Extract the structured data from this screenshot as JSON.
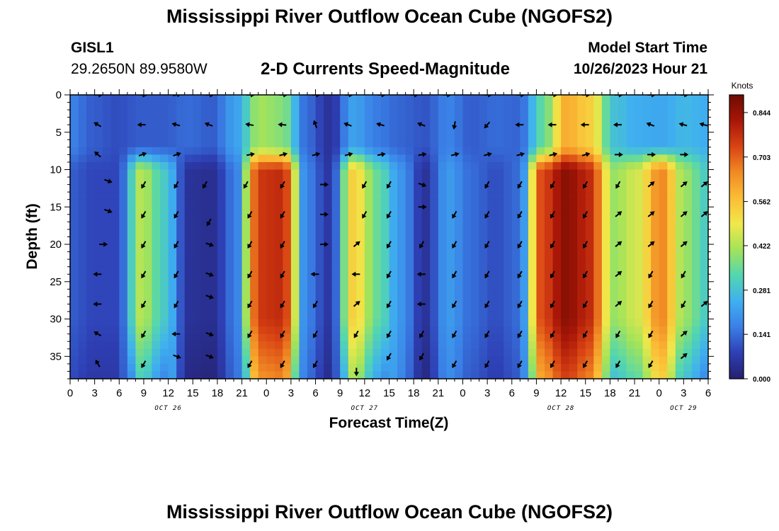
{
  "header": {
    "title": "Mississippi River Outflow Ocean Cube (NGOFS2)",
    "station": "GISL1",
    "coords": "29.2650N  89.9580W",
    "subtitle": "2-D Currents Speed-Magnitude",
    "model_start_label": "Model Start Time",
    "model_start_value": "10/26/2023 Hour 21"
  },
  "footer": {
    "title": "Mississippi River Outflow Ocean Cube (NGOFS2)"
  },
  "chart_data": {
    "type": "heatmap",
    "title": "2-D Currents Speed-Magnitude",
    "xlabel": "Forecast Time(Z)",
    "ylabel": "Depth (ft)",
    "x_ticks": [
      "0",
      "3",
      "6",
      "9",
      "12",
      "15",
      "18",
      "21",
      "0",
      "3",
      "6",
      "9",
      "12",
      "15",
      "18",
      "21",
      "0",
      "3",
      "6",
      "9",
      "12",
      "15",
      "18",
      "21",
      "0",
      "3",
      "6"
    ],
    "date_labels": [
      {
        "label": "OCT 26",
        "hour": 12
      },
      {
        "label": "OCT 27",
        "hour": 36
      },
      {
        "label": "OCT 28",
        "hour": 60
      },
      {
        "label": "OCT 29",
        "hour": 75
      }
    ],
    "xlim": [
      0,
      78
    ],
    "ylim": [
      0,
      38
    ],
    "y_ticks": [
      "0",
      "5",
      "10",
      "15",
      "20",
      "25",
      "30",
      "35"
    ],
    "colorbar": {
      "label": "Knots",
      "min": 0.0,
      "max": 0.9,
      "ticks": [
        "0.000",
        "0.141",
        "0.281",
        "0.422",
        "0.562",
        "0.703",
        "0.844"
      ]
    },
    "colormap": [
      "#24206e",
      "#2e3fb4",
      "#3a7fe6",
      "#3fb0f0",
      "#52d6b0",
      "#a3e35a",
      "#f0e84a",
      "#fbbd36",
      "#f18a24",
      "#d94414",
      "#a81608",
      "#6e0b02"
    ],
    "description": "Speed magnitude (knots) at each forecast hour (x) and depth in ft (y); sparse arrows show current direction.",
    "depth_bands": [
      {
        "from": 0,
        "to": 9,
        "speeds": [
          0.17,
          0.12,
          0.1,
          0.12,
          0.12,
          0.14,
          0.12,
          0.22,
          0.41,
          0.38,
          0.14,
          0.05,
          0.22,
          0.16,
          0.13,
          0.11,
          0.17,
          0.12,
          0.14,
          0.13,
          0.34,
          0.6,
          0.54,
          0.28,
          0.24,
          0.23,
          0.26,
          0.24
        ]
      },
      {
        "from": 9,
        "to": 38,
        "speeds": [
          0.12,
          0.09,
          0.09,
          0.43,
          0.3,
          0.05,
          0.04,
          0.16,
          0.76,
          0.78,
          0.17,
          0.06,
          0.54,
          0.35,
          0.2,
          0.05,
          0.21,
          0.14,
          0.1,
          0.14,
          0.74,
          0.86,
          0.78,
          0.4,
          0.46,
          0.66,
          0.4,
          0.3
        ]
      }
    ],
    "arrows": [
      {
        "t": 3.4,
        "d": 0,
        "dir": 0
      },
      {
        "t": 8.8,
        "d": 0,
        "dir": 5
      },
      {
        "t": 13,
        "d": 0,
        "dir": -10
      },
      {
        "t": 17,
        "d": 0,
        "dir": 0
      },
      {
        "t": 22,
        "d": 0,
        "dir": 0
      },
      {
        "t": 26,
        "d": 0,
        "dir": 0
      },
      {
        "t": 30,
        "d": 0,
        "dir": 0
      },
      {
        "t": 34,
        "d": 0,
        "dir": 0
      },
      {
        "t": 38,
        "d": 0,
        "dir": 0
      },
      {
        "t": 42,
        "d": 0,
        "dir": 0
      },
      {
        "t": 46,
        "d": 0,
        "dir": 0
      },
      {
        "t": 51,
        "d": 0,
        "dir": 0
      },
      {
        "t": 55,
        "d": 0,
        "dir": 0
      },
      {
        "t": 59,
        "d": 0,
        "dir": 0
      },
      {
        "t": 63,
        "d": 0,
        "dir": 0
      },
      {
        "t": 67,
        "d": 0,
        "dir": 0
      },
      {
        "t": 71,
        "d": 0,
        "dir": 0
      },
      {
        "t": 75,
        "d": 0,
        "dir": 0
      },
      {
        "t": 3.4,
        "d": 4,
        "dir": 210
      },
      {
        "t": 8.8,
        "d": 4,
        "dir": 180
      },
      {
        "t": 13,
        "d": 4,
        "dir": 195
      },
      {
        "t": 17,
        "d": 4,
        "dir": 200
      },
      {
        "t": 22,
        "d": 4,
        "dir": 190
      },
      {
        "t": 26,
        "d": 4,
        "dir": 185
      },
      {
        "t": 30,
        "d": 4,
        "dir": 250
      },
      {
        "t": 34,
        "d": 4,
        "dir": 200
      },
      {
        "t": 38,
        "d": 4,
        "dir": 195
      },
      {
        "t": 43,
        "d": 4,
        "dir": 200
      },
      {
        "t": 47,
        "d": 4,
        "dir": 100
      },
      {
        "t": 51,
        "d": 4,
        "dir": 130
      },
      {
        "t": 55,
        "d": 4,
        "dir": 180
      },
      {
        "t": 59,
        "d": 4,
        "dir": 180
      },
      {
        "t": 63,
        "d": 4,
        "dir": 180
      },
      {
        "t": 67,
        "d": 4,
        "dir": 180
      },
      {
        "t": 71,
        "d": 4,
        "dir": 200
      },
      {
        "t": 75,
        "d": 4,
        "dir": 195
      },
      {
        "t": 77.5,
        "d": 4,
        "dir": 195
      },
      {
        "t": 3.4,
        "d": 8,
        "dir": 220
      },
      {
        "t": 8.8,
        "d": 8,
        "dir": 340
      },
      {
        "t": 13,
        "d": 8,
        "dir": 340
      },
      {
        "t": 22,
        "d": 8,
        "dir": 350
      },
      {
        "t": 26,
        "d": 8,
        "dir": 345
      },
      {
        "t": 30,
        "d": 8,
        "dir": 345
      },
      {
        "t": 34,
        "d": 8,
        "dir": 345
      },
      {
        "t": 38,
        "d": 8,
        "dir": 350
      },
      {
        "t": 43,
        "d": 8,
        "dir": 350
      },
      {
        "t": 47,
        "d": 8,
        "dir": 345
      },
      {
        "t": 51,
        "d": 8,
        "dir": 345
      },
      {
        "t": 55,
        "d": 8,
        "dir": 345
      },
      {
        "t": 59,
        "d": 8,
        "dir": 345
      },
      {
        "t": 63,
        "d": 8,
        "dir": 345
      },
      {
        "t": 67,
        "d": 8,
        "dir": 0
      },
      {
        "t": 71,
        "d": 8,
        "dir": 0
      },
      {
        "t": 75,
        "d": 8,
        "dir": 0
      },
      {
        "t": 4.6,
        "d": 11.5,
        "dir": 20
      },
      {
        "t": 9,
        "d": 12,
        "dir": 120
      },
      {
        "t": 13,
        "d": 12,
        "dir": 120
      },
      {
        "t": 16.5,
        "d": 12,
        "dir": 120
      },
      {
        "t": 21.5,
        "d": 12,
        "dir": 120
      },
      {
        "t": 26,
        "d": 12,
        "dir": 120
      },
      {
        "t": 31,
        "d": 12,
        "dir": 0
      },
      {
        "t": 36,
        "d": 12,
        "dir": 120
      },
      {
        "t": 39,
        "d": 12,
        "dir": 120
      },
      {
        "t": 43,
        "d": 12,
        "dir": 20
      },
      {
        "t": 51,
        "d": 12,
        "dir": 120
      },
      {
        "t": 55,
        "d": 12,
        "dir": 120
      },
      {
        "t": 59,
        "d": 12,
        "dir": 120
      },
      {
        "t": 63,
        "d": 12,
        "dir": 120
      },
      {
        "t": 67,
        "d": 12,
        "dir": 120
      },
      {
        "t": 71,
        "d": 12,
        "dir": -40
      },
      {
        "t": 75,
        "d": 12,
        "dir": -40
      },
      {
        "t": 77.5,
        "d": 12,
        "dir": -40
      },
      {
        "t": 4.6,
        "d": 15.5,
        "dir": 20
      },
      {
        "t": 9,
        "d": 16,
        "dir": 120
      },
      {
        "t": 13,
        "d": 16,
        "dir": 120
      },
      {
        "t": 17,
        "d": 17,
        "dir": 120
      },
      {
        "t": 22,
        "d": 16,
        "dir": 120
      },
      {
        "t": 26,
        "d": 16,
        "dir": 120
      },
      {
        "t": 31,
        "d": 16,
        "dir": 0
      },
      {
        "t": 36,
        "d": 16,
        "dir": 120
      },
      {
        "t": 39,
        "d": 16,
        "dir": 120
      },
      {
        "t": 43,
        "d": 15,
        "dir": 0
      },
      {
        "t": 47,
        "d": 16,
        "dir": 120
      },
      {
        "t": 51,
        "d": 16,
        "dir": 120
      },
      {
        "t": 55,
        "d": 16,
        "dir": 120
      },
      {
        "t": 59,
        "d": 16,
        "dir": 120
      },
      {
        "t": 63,
        "d": 16,
        "dir": 120
      },
      {
        "t": 67,
        "d": 16,
        "dir": -40
      },
      {
        "t": 71,
        "d": 16,
        "dir": -40
      },
      {
        "t": 75,
        "d": 16,
        "dir": -40
      },
      {
        "t": 77.5,
        "d": 16,
        "dir": -40
      },
      {
        "t": 4,
        "d": 20,
        "dir": 0
      },
      {
        "t": 9,
        "d": 20,
        "dir": 120
      },
      {
        "t": 13,
        "d": 20,
        "dir": 120
      },
      {
        "t": 17,
        "d": 20,
        "dir": 20
      },
      {
        "t": 22,
        "d": 20,
        "dir": 120
      },
      {
        "t": 26,
        "d": 20,
        "dir": 120
      },
      {
        "t": 31,
        "d": 20,
        "dir": 0
      },
      {
        "t": 35,
        "d": 20,
        "dir": -40
      },
      {
        "t": 39,
        "d": 20,
        "dir": 120
      },
      {
        "t": 43,
        "d": 20,
        "dir": 120
      },
      {
        "t": 47,
        "d": 20,
        "dir": 120
      },
      {
        "t": 51,
        "d": 20,
        "dir": 120
      },
      {
        "t": 55,
        "d": 20,
        "dir": 120
      },
      {
        "t": 59,
        "d": 20,
        "dir": 120
      },
      {
        "t": 63,
        "d": 20,
        "dir": 120
      },
      {
        "t": 67,
        "d": 20,
        "dir": -40
      },
      {
        "t": 71,
        "d": 20,
        "dir": -40
      },
      {
        "t": 75,
        "d": 20,
        "dir": -40
      },
      {
        "t": 3.4,
        "d": 24,
        "dir": 180
      },
      {
        "t": 9,
        "d": 24,
        "dir": 120
      },
      {
        "t": 13,
        "d": 24,
        "dir": 120
      },
      {
        "t": 17,
        "d": 24,
        "dir": 20
      },
      {
        "t": 22,
        "d": 24,
        "dir": 120
      },
      {
        "t": 26,
        "d": 24,
        "dir": 120
      },
      {
        "t": 30,
        "d": 24,
        "dir": 180
      },
      {
        "t": 35,
        "d": 24,
        "dir": 180
      },
      {
        "t": 39,
        "d": 24,
        "dir": 120
      },
      {
        "t": 43,
        "d": 24,
        "dir": 180
      },
      {
        "t": 47,
        "d": 24,
        "dir": 120
      },
      {
        "t": 51,
        "d": 24,
        "dir": 120
      },
      {
        "t": 55,
        "d": 24,
        "dir": 120
      },
      {
        "t": 59,
        "d": 24,
        "dir": 120
      },
      {
        "t": 63,
        "d": 24,
        "dir": 120
      },
      {
        "t": 67,
        "d": 24,
        "dir": -40
      },
      {
        "t": 71,
        "d": 24,
        "dir": 120
      },
      {
        "t": 75,
        "d": 24,
        "dir": 120
      },
      {
        "t": 3.4,
        "d": 28,
        "dir": 180
      },
      {
        "t": 9,
        "d": 28,
        "dir": 120
      },
      {
        "t": 13,
        "d": 28,
        "dir": 120
      },
      {
        "t": 17,
        "d": 27,
        "dir": 20
      },
      {
        "t": 22,
        "d": 28,
        "dir": 120
      },
      {
        "t": 26,
        "d": 28,
        "dir": 120
      },
      {
        "t": 30,
        "d": 28,
        "dir": 120
      },
      {
        "t": 35,
        "d": 28,
        "dir": -40
      },
      {
        "t": 39,
        "d": 28,
        "dir": 120
      },
      {
        "t": 43,
        "d": 28,
        "dir": 180
      },
      {
        "t": 47,
        "d": 28,
        "dir": 120
      },
      {
        "t": 51,
        "d": 28,
        "dir": 120
      },
      {
        "t": 55,
        "d": 28,
        "dir": 120
      },
      {
        "t": 59,
        "d": 28,
        "dir": 120
      },
      {
        "t": 63,
        "d": 28,
        "dir": 120
      },
      {
        "t": 67,
        "d": 28,
        "dir": -40
      },
      {
        "t": 71,
        "d": 28,
        "dir": 120
      },
      {
        "t": 75,
        "d": 28,
        "dir": 120
      },
      {
        "t": 77.5,
        "d": 28,
        "dir": -40
      },
      {
        "t": 3.4,
        "d": 32,
        "dir": 210
      },
      {
        "t": 9,
        "d": 32,
        "dir": 120
      },
      {
        "t": 13,
        "d": 32,
        "dir": 180
      },
      {
        "t": 17,
        "d": 32,
        "dir": 20
      },
      {
        "t": 22,
        "d": 32,
        "dir": 120
      },
      {
        "t": 26,
        "d": 32,
        "dir": 120
      },
      {
        "t": 30,
        "d": 32,
        "dir": 120
      },
      {
        "t": 35,
        "d": 32,
        "dir": 120
      },
      {
        "t": 39,
        "d": 32,
        "dir": 120
      },
      {
        "t": 43,
        "d": 32,
        "dir": 120
      },
      {
        "t": 47,
        "d": 32,
        "dir": 120
      },
      {
        "t": 51,
        "d": 32,
        "dir": 120
      },
      {
        "t": 55,
        "d": 32,
        "dir": 120
      },
      {
        "t": 59,
        "d": 32,
        "dir": 120
      },
      {
        "t": 63,
        "d": 32,
        "dir": 120
      },
      {
        "t": 67,
        "d": 32,
        "dir": 120
      },
      {
        "t": 71,
        "d": 32,
        "dir": 120
      },
      {
        "t": 75,
        "d": 32,
        "dir": -40
      },
      {
        "t": 3.4,
        "d": 36,
        "dir": 240
      },
      {
        "t": 9,
        "d": 36,
        "dir": 120
      },
      {
        "t": 13,
        "d": 35,
        "dir": 20
      },
      {
        "t": 17,
        "d": 35,
        "dir": 20
      },
      {
        "t": 22,
        "d": 36,
        "dir": 120
      },
      {
        "t": 26,
        "d": 36,
        "dir": 120
      },
      {
        "t": 30,
        "d": 36,
        "dir": 120
      },
      {
        "t": 35,
        "d": 37,
        "dir": 90
      },
      {
        "t": 39,
        "d": 35,
        "dir": 120
      },
      {
        "t": 43,
        "d": 35,
        "dir": 120
      },
      {
        "t": 47,
        "d": 36,
        "dir": 120
      },
      {
        "t": 51,
        "d": 36,
        "dir": 120
      },
      {
        "t": 55,
        "d": 36,
        "dir": 120
      },
      {
        "t": 59,
        "d": 36,
        "dir": 120
      },
      {
        "t": 63,
        "d": 36,
        "dir": 120
      },
      {
        "t": 67,
        "d": 36,
        "dir": 120
      },
      {
        "t": 71,
        "d": 36,
        "dir": 120
      },
      {
        "t": 75,
        "d": 35,
        "dir": -40
      }
    ]
  }
}
